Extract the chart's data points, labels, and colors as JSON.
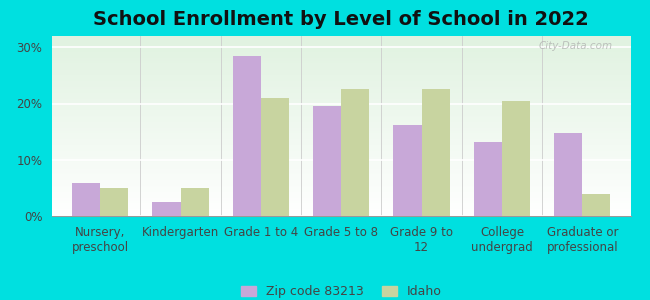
{
  "title": "School Enrollment by Level of School in 2022",
  "categories": [
    "Nursery,\npreschool",
    "Kindergarten",
    "Grade 1 to 4",
    "Grade 5 to 8",
    "Grade 9 to\n12",
    "College\nundergrad",
    "Graduate or\nprofessional"
  ],
  "zip_values": [
    5.8,
    2.5,
    28.5,
    19.5,
    16.2,
    13.2,
    14.8
  ],
  "idaho_values": [
    5.0,
    5.0,
    21.0,
    22.5,
    22.5,
    20.5,
    4.0
  ],
  "zip_color": "#c8a8d8",
  "idaho_color": "#c8d4a0",
  "background_color": "#00e0e0",
  "ylim": [
    0,
    32
  ],
  "yticks": [
    0,
    10,
    20,
    30
  ],
  "ytick_labels": [
    "0%",
    "10%",
    "20%",
    "30%"
  ],
  "legend_zip_label": "Zip code 83213",
  "legend_idaho_label": "Idaho",
  "watermark": "City-Data.com",
  "title_fontsize": 14,
  "tick_fontsize": 8.5,
  "legend_fontsize": 9
}
